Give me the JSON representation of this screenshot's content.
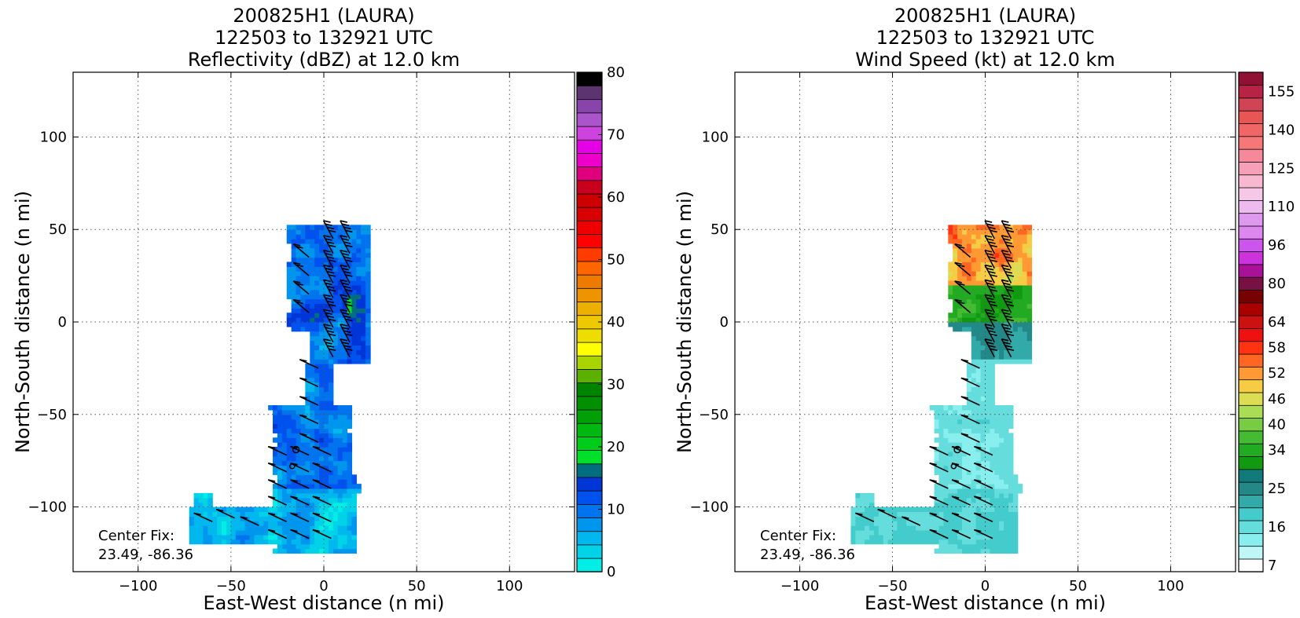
{
  "chart_data": [
    {
      "type": "heatmap",
      "title": [
        "200825H1 (LAURA)",
        "122503 to 132921 UTC",
        "Reflectivity (dBZ) at 12.0 km"
      ],
      "xlabel": "East-West distance (n mi)",
      "ylabel": "North-South distance (n mi)",
      "xlim": [
        -135,
        135
      ],
      "ylim": [
        -135,
        135
      ],
      "xticks": [
        -100,
        -50,
        0,
        50,
        100
      ],
      "yticks": [
        -100,
        -50,
        0,
        50,
        100
      ],
      "xtick_labels": [
        "−100",
        "−50",
        "0",
        "50",
        "100"
      ],
      "ytick_labels": [
        "−100",
        "−50",
        "0",
        "50",
        "100"
      ],
      "grid": true,
      "annotation": [
        "Center Fix:",
        "23.49, -86.36"
      ],
      "colorbar": {
        "min": 0,
        "max": 80,
        "step": 2.5,
        "ticks": [
          0,
          10,
          20,
          30,
          40,
          50,
          60,
          70,
          80
        ],
        "tick_labels": [
          "0",
          "10",
          "20",
          "30",
          "40",
          "50",
          "60",
          "70",
          "80"
        ],
        "colors": [
          "#00eee6",
          "#00d2e8",
          "#00b8ee",
          "#0096ee",
          "#0074ee",
          "#0052ee",
          "#0036d8",
          "#006e7e",
          "#00e02a",
          "#00cc1a",
          "#00b810",
          "#00a006",
          "#009000",
          "#008400",
          "#5cb000",
          "#aad400",
          "#ffff00",
          "#eedd00",
          "#eec800",
          "#eeb000",
          "#ee9400",
          "#ee7a00",
          "#ff6600",
          "#ff3c00",
          "#ff0000",
          "#ee0000",
          "#d80000",
          "#cc0000",
          "#c8001e",
          "#e0007e",
          "#ee00cc",
          "#e600e6",
          "#cc44dd",
          "#aa55cc",
          "#8844aa",
          "#5c3470",
          "#000000"
        ]
      }
    },
    {
      "type": "heatmap",
      "title": [
        "200825H1 (LAURA)",
        "122503 to 132921 UTC",
        "Wind Speed (kt) at 12.0 km"
      ],
      "xlabel": "East-West distance (n mi)",
      "ylabel": "North-South distance (n mi)",
      "xlim": [
        -135,
        135
      ],
      "ylim": [
        -135,
        135
      ],
      "xticks": [
        -100,
        -50,
        0,
        50,
        100
      ],
      "yticks": [
        -100,
        -50,
        0,
        50,
        100
      ],
      "xtick_labels": [
        "−100",
        "−50",
        "0",
        "50",
        "100"
      ],
      "ytick_labels": [
        "−100",
        "−50",
        "0",
        "50",
        "100"
      ],
      "grid": true,
      "annotation": [
        "Center Fix:",
        "23.49, -86.36"
      ],
      "colorbar": {
        "tick_labels": [
          "7",
          "16",
          "25",
          "34",
          "40",
          "46",
          "52",
          "58",
          "64",
          "80",
          "96",
          "110",
          "125",
          "140",
          "155"
        ],
        "tick_levels": [
          0,
          3,
          6,
          9,
          11,
          13,
          15,
          17,
          19,
          22,
          25,
          28,
          31,
          34,
          37
        ],
        "colors": [
          "#ffffff",
          "#bff6f6",
          "#88eeee",
          "#66dddd",
          "#44cccc",
          "#33aaaa",
          "#228888",
          "#117a7a",
          "#119911",
          "#22aa22",
          "#44bb33",
          "#77cc44",
          "#aadd55",
          "#dddd55",
          "#f5cc44",
          "#ff9933",
          "#ff6622",
          "#ff3311",
          "#ee1111",
          "#cc1111",
          "#aa0000",
          "#770000",
          "#771144",
          "#aa1199",
          "#cc33dd",
          "#cc55ee",
          "#dd88ee",
          "#dd99ee",
          "#eebbee",
          "#f5c8e8",
          "#f8b8d0",
          "#f5a0b8",
          "#f58899",
          "#f57777",
          "#f06666",
          "#e85555",
          "#d04455",
          "#b82244",
          "#901133"
        ]
      }
    }
  ]
}
